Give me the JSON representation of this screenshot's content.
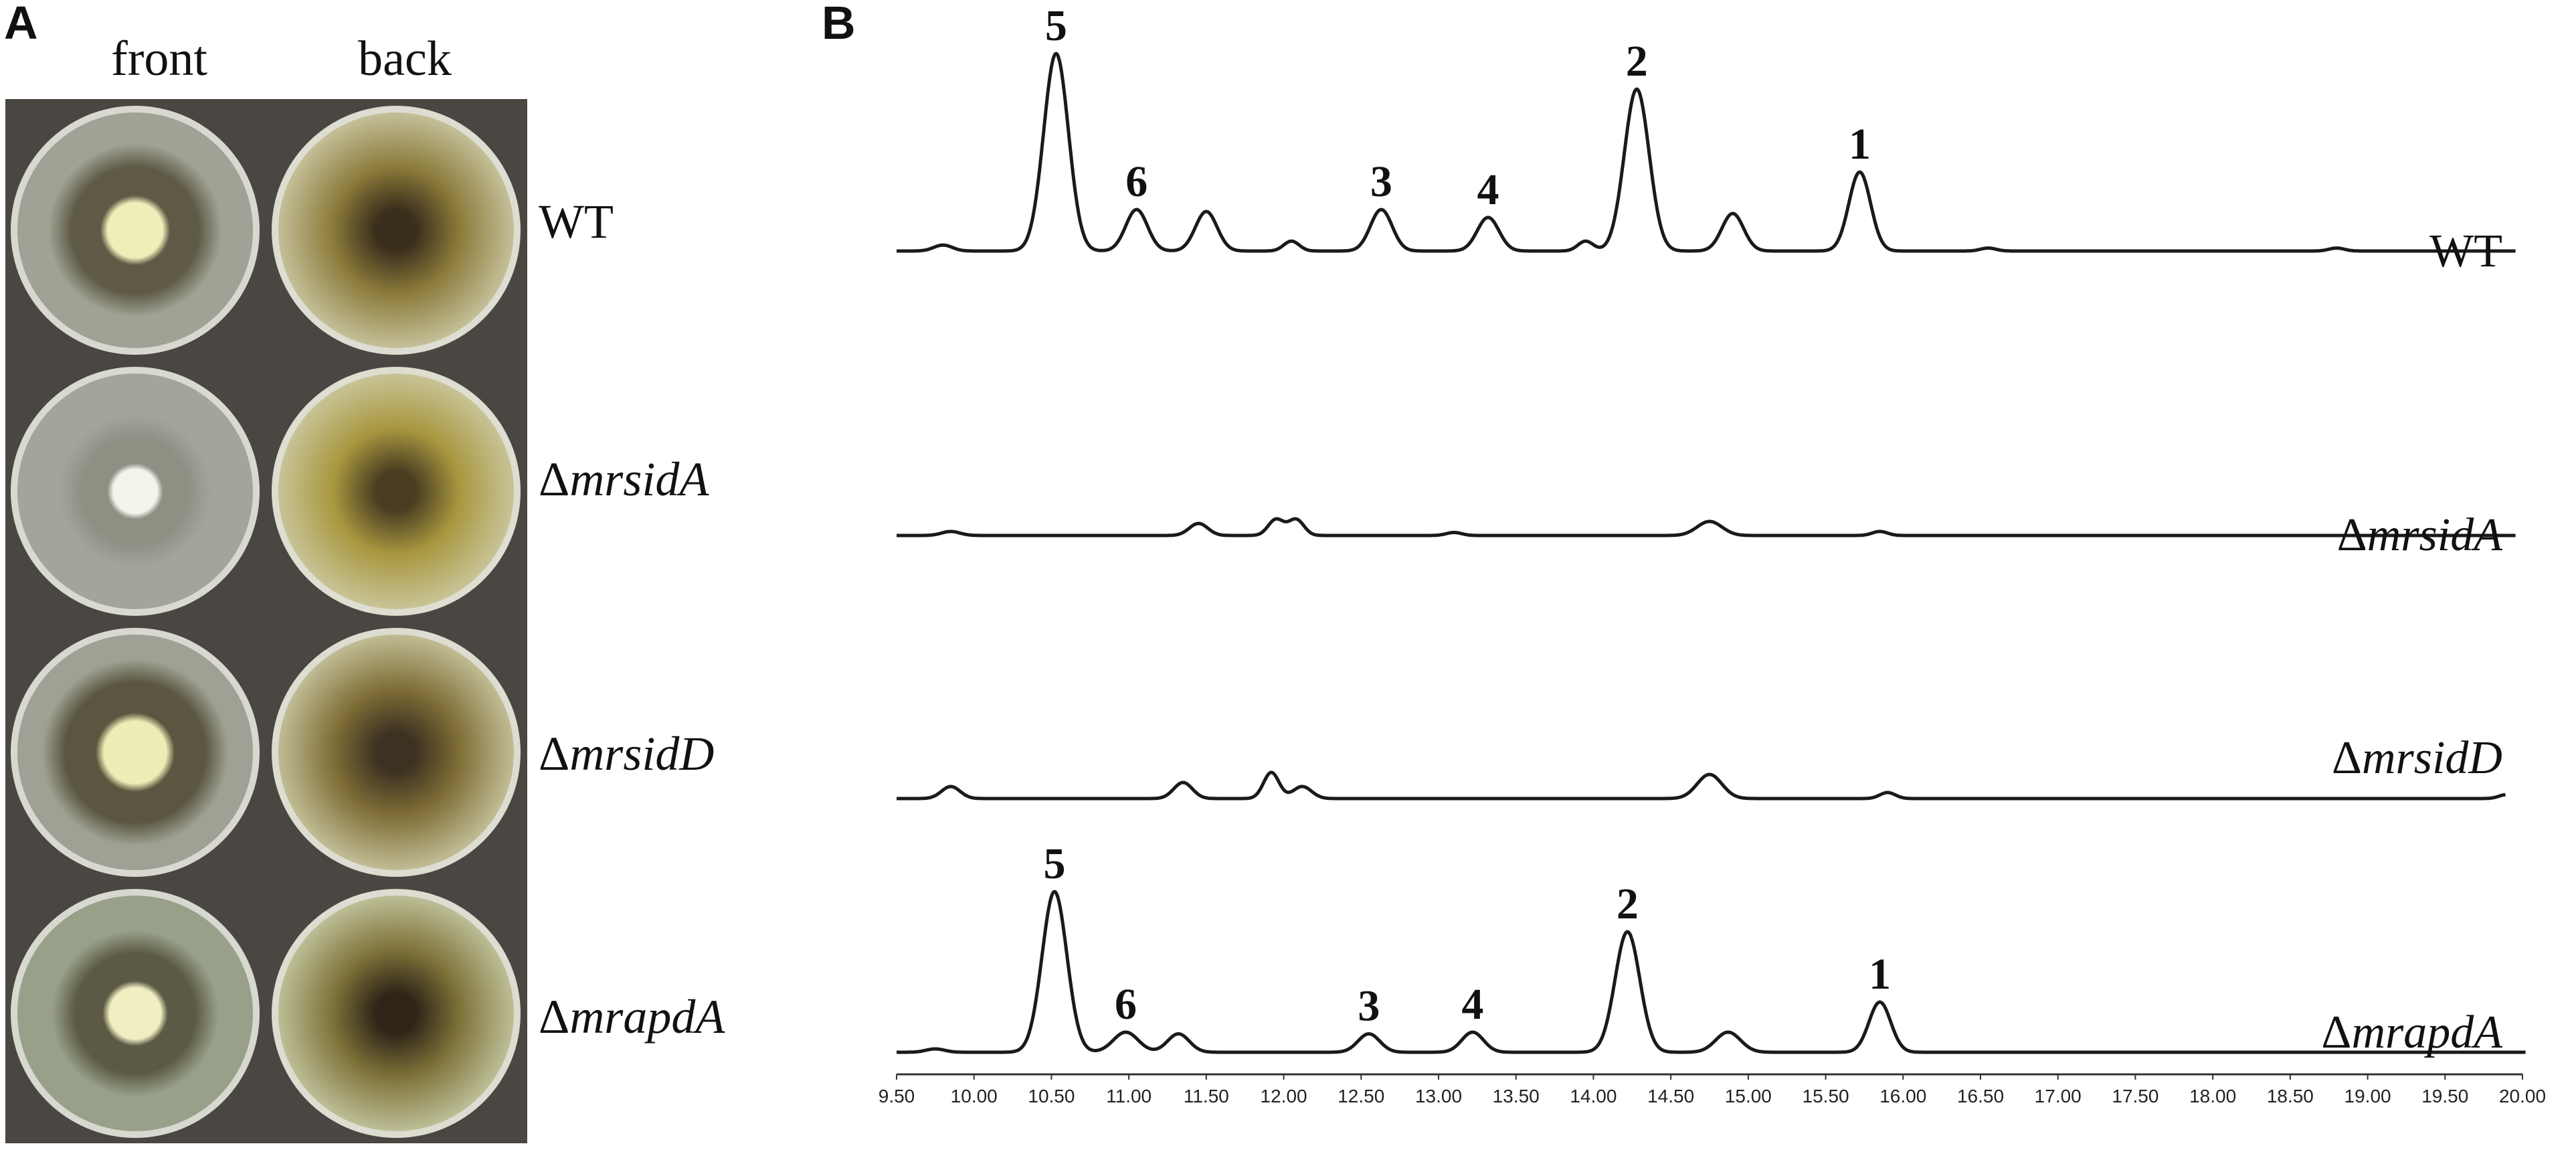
{
  "figure": {
    "panel_a_label": "A",
    "panel_b_label": "B",
    "column_headers": [
      "front",
      "back"
    ],
    "strains": [
      {
        "delta": "",
        "name": "WT",
        "italic": false
      },
      {
        "delta": "Δ",
        "name": "mrsidA",
        "italic": true
      },
      {
        "delta": "Δ",
        "name": "mrsidD",
        "italic": true
      },
      {
        "delta": "Δ",
        "name": "mrapdA",
        "italic": true
      }
    ]
  },
  "plates": [
    {
      "front": {
        "rim": "#c9cbbf",
        "agar": "#9fa294",
        "ring": "#5e5a46",
        "colony": "#efeeb8",
        "colony_size": 0.3
      },
      "back": {
        "agar": "#c6c29c",
        "mid": "#8b7a3a",
        "core": "#3a2e1c"
      }
    },
    {
      "front": {
        "rim": "#cbccc3",
        "agar": "#a3a59d",
        "ring": "#8f8f84",
        "colony": "#f4f3ec",
        "colony_size": 0.24
      },
      "back": {
        "agar": "#c9c59a",
        "mid": "#a8973f",
        "core": "#4a3e22"
      }
    },
    {
      "front": {
        "rim": "#c8cabf",
        "agar": "#9ea193",
        "ring": "#5a5640",
        "colony": "#ededb6",
        "colony_size": 0.34
      },
      "back": {
        "agar": "#c3bf99",
        "mid": "#7f6e36",
        "core": "#3d3222"
      }
    },
    {
      "front": {
        "rim": "#c5c8b9",
        "agar": "#98a08a",
        "ring": "#5c5a44",
        "colony": "#f0efc2",
        "colony_size": 0.28
      },
      "back": {
        "agar": "#bfc19a",
        "mid": "#7d7138",
        "core": "#2e2518"
      }
    }
  ],
  "chart_data": {
    "type": "line",
    "xlabel": "",
    "ylabel": "",
    "xlim": [
      9.5,
      20.0
    ],
    "x_ticks": [
      "9.50",
      "10.00",
      "10.50",
      "11.00",
      "11.50",
      "12.00",
      "12.50",
      "13.00",
      "13.50",
      "14.00",
      "14.50",
      "15.00",
      "15.50",
      "16.00",
      "16.50",
      "17.00",
      "17.50",
      "18.00",
      "18.50",
      "19.00",
      "19.50",
      "20.00"
    ],
    "series": [
      {
        "name": "WT",
        "label_delta": "",
        "label_italic": false,
        "peaks": [
          {
            "rt": 9.8,
            "height": 0.03,
            "width": 0.06
          },
          {
            "rt": 10.53,
            "height": 1.0,
            "width": 0.08
          },
          {
            "rt": 11.05,
            "height": 0.21,
            "width": 0.07
          },
          {
            "rt": 11.5,
            "height": 0.2,
            "width": 0.07
          },
          {
            "rt": 12.05,
            "height": 0.05,
            "width": 0.05
          },
          {
            "rt": 12.63,
            "height": 0.21,
            "width": 0.07
          },
          {
            "rt": 13.32,
            "height": 0.17,
            "width": 0.07
          },
          {
            "rt": 13.95,
            "height": 0.05,
            "width": 0.05
          },
          {
            "rt": 14.28,
            "height": 0.82,
            "width": 0.08
          },
          {
            "rt": 14.9,
            "height": 0.19,
            "width": 0.07
          },
          {
            "rt": 15.72,
            "height": 0.4,
            "width": 0.07
          },
          {
            "rt": 16.55,
            "height": 0.015,
            "width": 0.05
          },
          {
            "rt": 18.8,
            "height": 0.015,
            "width": 0.05
          }
        ],
        "peak_labels": [
          {
            "text": "5",
            "rt": 10.53
          },
          {
            "text": "6",
            "rt": 11.05
          },
          {
            "text": "3",
            "rt": 12.63
          },
          {
            "text": "4",
            "rt": 13.32
          },
          {
            "text": "2",
            "rt": 14.28
          },
          {
            "text": "1",
            "rt": 15.72
          }
        ]
      },
      {
        "name": "mrsidA",
        "label_delta": "Δ",
        "label_italic": true,
        "peaks": [
          {
            "rt": 9.85,
            "height": 0.02,
            "width": 0.06
          },
          {
            "rt": 11.45,
            "height": 0.06,
            "width": 0.06
          },
          {
            "rt": 11.95,
            "height": 0.08,
            "width": 0.05
          },
          {
            "rt": 12.08,
            "height": 0.08,
            "width": 0.05
          },
          {
            "rt": 13.1,
            "height": 0.015,
            "width": 0.05
          },
          {
            "rt": 14.75,
            "height": 0.07,
            "width": 0.08
          },
          {
            "rt": 15.85,
            "height": 0.02,
            "width": 0.05
          }
        ],
        "peak_labels": []
      },
      {
        "name": "mrsidD",
        "label_delta": "Δ",
        "label_italic": true,
        "peaks": [
          {
            "rt": 9.85,
            "height": 0.06,
            "width": 0.06
          },
          {
            "rt": 11.35,
            "height": 0.08,
            "width": 0.06
          },
          {
            "rt": 11.92,
            "height": 0.13,
            "width": 0.05
          },
          {
            "rt": 12.12,
            "height": 0.06,
            "width": 0.06
          },
          {
            "rt": 14.75,
            "height": 0.12,
            "width": 0.08
          },
          {
            "rt": 15.9,
            "height": 0.03,
            "width": 0.05
          },
          {
            "rt": 19.9,
            "height": 0.02,
            "width": 0.05
          }
        ],
        "peak_labels": []
      },
      {
        "name": "mrapdA",
        "label_delta": "Δ",
        "label_italic": true,
        "peaks": [
          {
            "rt": 9.75,
            "height": 0.02,
            "width": 0.06
          },
          {
            "rt": 10.52,
            "height": 0.96,
            "width": 0.08
          },
          {
            "rt": 10.98,
            "height": 0.12,
            "width": 0.08
          },
          {
            "rt": 11.32,
            "height": 0.11,
            "width": 0.07
          },
          {
            "rt": 12.55,
            "height": 0.11,
            "width": 0.07
          },
          {
            "rt": 13.22,
            "height": 0.12,
            "width": 0.07
          },
          {
            "rt": 14.22,
            "height": 0.72,
            "width": 0.08
          },
          {
            "rt": 14.87,
            "height": 0.12,
            "width": 0.08
          },
          {
            "rt": 15.85,
            "height": 0.3,
            "width": 0.07
          }
        ],
        "peak_labels": [
          {
            "text": "5",
            "rt": 10.52
          },
          {
            "text": "6",
            "rt": 10.98
          },
          {
            "text": "3",
            "rt": 12.55
          },
          {
            "text": "4",
            "rt": 13.22
          },
          {
            "text": "2",
            "rt": 14.22
          },
          {
            "text": "1",
            "rt": 15.85
          }
        ]
      }
    ]
  }
}
